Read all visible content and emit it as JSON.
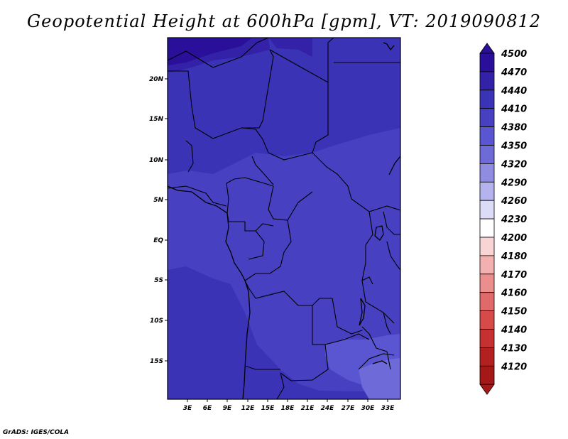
{
  "title": "Geopotential Height at 600hPa [gpm], VT: 2019090812",
  "footer": "GrADS: IGES/COLA",
  "map": {
    "lat_labels": [
      "20N",
      "15N",
      "10N",
      "5N",
      "EQ",
      "5S",
      "10S",
      "15S"
    ],
    "lon_labels": [
      "3E",
      "6E",
      "9E",
      "12E",
      "15E",
      "18E",
      "21E",
      "24E",
      "27E",
      "30E",
      "33E"
    ]
  },
  "colorbar": {
    "levels": [
      "4500",
      "4470",
      "4440",
      "4410",
      "4380",
      "4350",
      "4320",
      "4290",
      "4260",
      "4230",
      "4200",
      "4180",
      "4170",
      "4160",
      "4150",
      "4140",
      "4130",
      "4120"
    ],
    "colors": [
      "#2a0f9a",
      "#3322a8",
      "#3b33b6",
      "#4741c2",
      "#5a55d0",
      "#6e6ad8",
      "#8f8ce2",
      "#b5b3ee",
      "#dcdcf8",
      "#ffffff",
      "#f8d4d4",
      "#f2b0b0",
      "#ea8e8e",
      "#e06a6a",
      "#d64a4a",
      "#c53030",
      "#b32020",
      "#a51818"
    ],
    "top_arrow_color": "#2a0f9a",
    "bottom_arrow_color": "#a51818"
  }
}
